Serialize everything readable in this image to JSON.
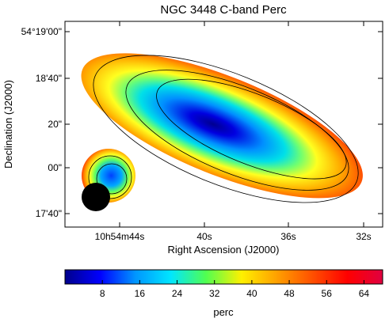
{
  "chart_data": {
    "type": "heatmap",
    "title": "NGC 3448   C-band   Perc",
    "xlabel": "Right Ascension (J2000)",
    "ylabel": "Declination (J2000)",
    "x_ticks": [
      "10h54m44s",
      "40s",
      "36s",
      "32s"
    ],
    "y_ticks": [
      "54°19'00\"",
      "18'40\"",
      "20\"",
      "00\"",
      "17'40\""
    ],
    "colorbar": {
      "label": "perc",
      "min": 0,
      "max": 68,
      "ticks": [
        8,
        16,
        24,
        32,
        40,
        48,
        56,
        64
      ],
      "tick_labels": [
        "8",
        "16",
        "24",
        "32",
        "40",
        "48",
        "56",
        "64"
      ],
      "colormap": [
        "#00008b",
        "#0000ff",
        "#0096ff",
        "#00e6ff",
        "#50ff50",
        "#fff000",
        "#ffa000",
        "#ff5000",
        "#ff0000",
        "#e00040"
      ]
    },
    "features": [
      "main-galaxy-emission",
      "companion-source",
      "beam"
    ],
    "contours": 3,
    "grid": false
  }
}
